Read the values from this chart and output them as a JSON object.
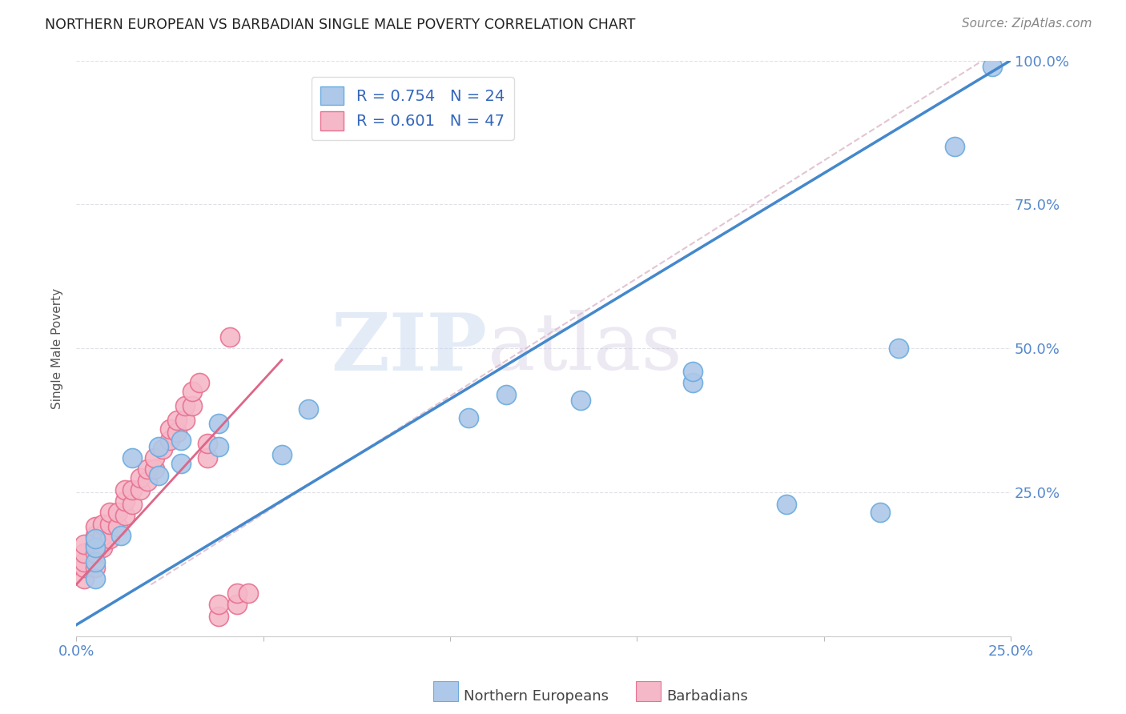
{
  "title": "NORTHERN EUROPEAN VS BARBADIAN SINGLE MALE POVERTY CORRELATION CHART",
  "source": "Source: ZipAtlas.com",
  "ylabel": "Single Male Poverty",
  "background_color": "#ffffff",
  "watermark_zip": "ZIP",
  "watermark_atlas": "atlas",
  "ne_color": "#adc8e8",
  "barb_color": "#f5b8c8",
  "ne_edge_color": "#6aabdf",
  "barb_edge_color": "#e87090",
  "ne_line_color": "#4488cc",
  "barb_line_color": "#dd6688",
  "diag_color": "#ddbbcc",
  "ne_R": 0.754,
  "ne_N": 24,
  "barb_R": 0.601,
  "barb_N": 47,
  "ne_x": [
    0.005,
    0.005,
    0.005,
    0.005,
    0.012,
    0.015,
    0.022,
    0.022,
    0.028,
    0.028,
    0.038,
    0.038,
    0.055,
    0.062,
    0.105,
    0.115,
    0.135,
    0.165,
    0.165,
    0.19,
    0.215,
    0.22,
    0.235,
    0.245
  ],
  "ne_y": [
    0.1,
    0.13,
    0.155,
    0.17,
    0.175,
    0.31,
    0.28,
    0.33,
    0.3,
    0.34,
    0.33,
    0.37,
    0.315,
    0.395,
    0.38,
    0.42,
    0.41,
    0.44,
    0.46,
    0.23,
    0.215,
    0.5,
    0.85,
    0.99
  ],
  "barb_x": [
    0.002,
    0.002,
    0.002,
    0.002,
    0.002,
    0.005,
    0.005,
    0.005,
    0.005,
    0.005,
    0.007,
    0.007,
    0.007,
    0.009,
    0.009,
    0.009,
    0.011,
    0.011,
    0.013,
    0.013,
    0.013,
    0.015,
    0.015,
    0.017,
    0.017,
    0.019,
    0.019,
    0.021,
    0.021,
    0.023,
    0.025,
    0.025,
    0.027,
    0.027,
    0.029,
    0.029,
    0.031,
    0.031,
    0.033,
    0.035,
    0.035,
    0.038,
    0.038,
    0.041,
    0.043,
    0.043,
    0.046
  ],
  "barb_y": [
    0.1,
    0.12,
    0.13,
    0.145,
    0.16,
    0.12,
    0.145,
    0.16,
    0.175,
    0.19,
    0.155,
    0.175,
    0.195,
    0.17,
    0.195,
    0.215,
    0.19,
    0.215,
    0.21,
    0.235,
    0.255,
    0.23,
    0.255,
    0.255,
    0.275,
    0.27,
    0.29,
    0.29,
    0.31,
    0.325,
    0.34,
    0.36,
    0.355,
    0.375,
    0.375,
    0.4,
    0.4,
    0.425,
    0.44,
    0.31,
    0.335,
    0.035,
    0.055,
    0.52,
    0.055,
    0.075,
    0.075
  ],
  "xlim": [
    0.0,
    0.25
  ],
  "ylim": [
    0.0,
    1.0
  ],
  "ne_line_x0": 0.0,
  "ne_line_y0": 0.02,
  "ne_line_x1": 0.25,
  "ne_line_y1": 1.0,
  "barb_line_x0": 0.0,
  "barb_line_y0": 0.09,
  "barb_line_x1": 0.055,
  "barb_line_y1": 0.48,
  "diag_line_x0": 0.02,
  "diag_line_y0": 0.09,
  "diag_line_x1": 0.245,
  "diag_line_y1": 1.01,
  "xticks": [
    0.0,
    0.05,
    0.1,
    0.15,
    0.2,
    0.25
  ],
  "xticklabels": [
    "0.0%",
    "",
    "",
    "",
    "",
    "25.0%"
  ],
  "yticks": [
    0.0,
    0.25,
    0.5,
    0.75,
    1.0
  ],
  "yticklabels_right": [
    "",
    "25.0%",
    "50.0%",
    "75.0%",
    "100.0%"
  ],
  "tick_color": "#5588cc",
  "grid_color": "#e0e0e8",
  "legend_ne_label": "R = 0.754   N = 24",
  "legend_barb_label": "R = 0.601   N = 47",
  "bottom_legend_ne": "Northern Europeans",
  "bottom_legend_barb": "Barbadians"
}
